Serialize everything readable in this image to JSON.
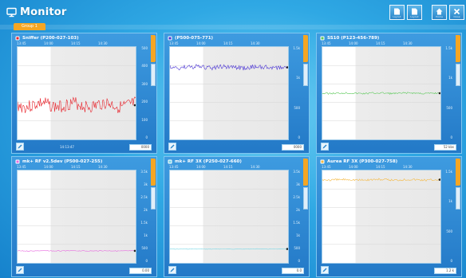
{
  "app": {
    "title": "Monitor",
    "active_tab": "Group 1"
  },
  "toolbar": {
    "buttons": [
      {
        "icon": "document-icon",
        "caption": "Layout"
      },
      {
        "icon": "document-icon",
        "caption": "Layout"
      },
      {
        "icon": "home-icon",
        "caption": "Home"
      },
      {
        "icon": "close-icon",
        "caption": "Close"
      }
    ]
  },
  "panels": [
    {
      "title": "Sniffer (P200-027-103)",
      "color": "#e8222a",
      "icon": "sniffer-icon",
      "x_ticks": [
        "13:45",
        "14:00",
        "14:15",
        "14:30"
      ],
      "y_ticks": [
        "500",
        "400",
        "300",
        "200",
        "100",
        "0"
      ],
      "footer_text": "14:13:47",
      "footer_value": "0000",
      "signal": 0.63,
      "noise": 0.07
    },
    {
      "title": "(P500-075-771)",
      "color": "#4b35d4",
      "icon": "device-icon",
      "x_ticks": [
        "13:45",
        "14:00",
        "14:15",
        "14:30"
      ],
      "y_ticks": [
        "1.5k",
        "1k",
        "500",
        "0"
      ],
      "footer_text": "",
      "footer_value": "0000",
      "signal": 0.22,
      "noise": 0.025
    },
    {
      "title": "SS10 (P123-456-789)",
      "color": "#5cc95a",
      "icon": "sensor-icon",
      "x_ticks": [
        "13:45",
        "14:00",
        "14:15",
        "14:30"
      ],
      "y_ticks": [
        "1.5k",
        "1k",
        "500",
        "0"
      ],
      "footer_text": "",
      "footer_value": "52 kbs",
      "signal": 0.5,
      "noise": 0.01
    },
    {
      "title": "mk+ RF v2.5dev (P500-027-255)",
      "color": "#e86be0",
      "icon": "radio-icon",
      "x_ticks": [
        "13:45",
        "14:00",
        "14:15",
        "14:30"
      ],
      "y_ticks": [
        "3.5k",
        "3k",
        "2.5k",
        "2k",
        "1.5k",
        "1k",
        "500",
        "0"
      ],
      "footer_text": "",
      "footer_value": "0.00",
      "signal": 0.87,
      "noise": 0.004
    },
    {
      "title": "mk+ RF 3X (P250-027-660)",
      "color": "#7ad8e6",
      "icon": "radio-icon",
      "x_ticks": [
        "13:45",
        "14:00",
        "14:15",
        "14:30"
      ],
      "y_ticks": [
        "3.5k",
        "3k",
        "2.5k",
        "2k",
        "1.5k",
        "1k",
        "500",
        "0"
      ],
      "footer_text": "",
      "footer_value": "0.0",
      "signal": 0.85,
      "noise": 0.003
    },
    {
      "title": "Aurea RF 3X (P300-027-758)",
      "color": "#f5b942",
      "icon": "radio-icon",
      "x_ticks": [
        "13:45",
        "14:00",
        "14:15",
        "14:30"
      ],
      "y_ticks": [
        "1.5k",
        "1k",
        "500",
        "0"
      ],
      "footer_text": "",
      "footer_value": "1.2 k",
      "signal": 0.1,
      "noise": 0.012
    }
  ]
}
